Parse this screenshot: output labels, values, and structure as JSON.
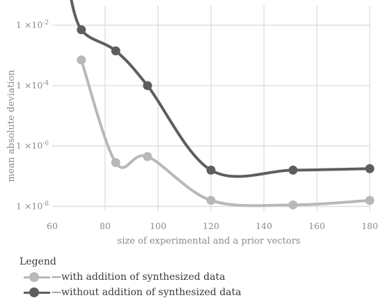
{
  "chart_data": {
    "type": "line",
    "xlabel": "size of experimental and a prior vectors",
    "ylabel": "mean absolute deviation",
    "xlim": [
      60,
      180
    ],
    "x_ticks": [
      60,
      80,
      100,
      120,
      140,
      160,
      180
    ],
    "x_tick_labels": [
      "60",
      "80",
      "100",
      "120",
      "140",
      "160",
      "180"
    ],
    "y_scale": "log",
    "ylim_exponent": [
      -8.15,
      -1.35
    ],
    "y_ticks": [
      -8,
      -6,
      -4,
      -2
    ],
    "y_tick_labels": [
      "1 ×10-8",
      "1 ×10-6",
      "1 ×10-4",
      "1 ×10-2"
    ],
    "grid": true,
    "series": [
      {
        "name": "with addition of synthesized data",
        "color": "#b8b8b8",
        "x": [
          71,
          84,
          96,
          120,
          151,
          180
        ],
        "log10_y": [
          -3.15,
          -6.55,
          -6.35,
          -7.8,
          -7.95,
          -7.8
        ],
        "curve_start_x": 71
      },
      {
        "name": "without addition of synthesized data",
        "color": "#5e5e5e",
        "x": [
          71,
          84,
          96,
          120,
          151,
          180
        ],
        "log10_y": [
          -2.15,
          -2.85,
          -4.0,
          -6.8,
          -6.8,
          -6.75
        ],
        "curve_start_x": 66,
        "curve_start_log10_y": -0.65
      }
    ]
  },
  "legend": {
    "title": "Legend",
    "items": [
      {
        "label": "—with addition of synthesized data",
        "color": "#b8b8b8"
      },
      {
        "label": "—without addition of synthesized data",
        "color": "#5e5e5e"
      }
    ]
  }
}
